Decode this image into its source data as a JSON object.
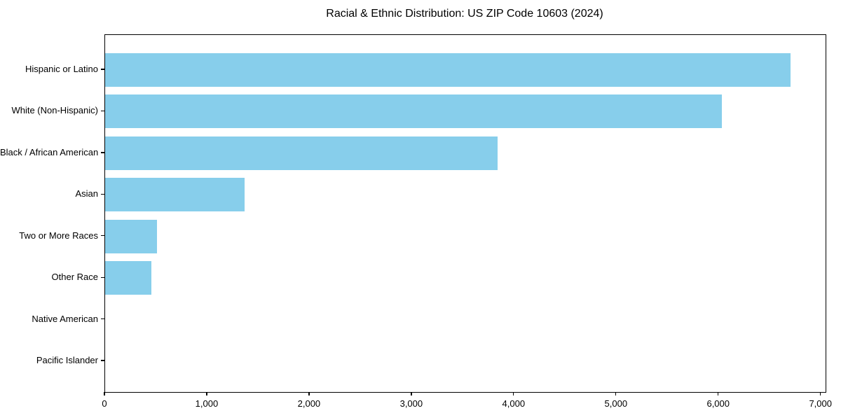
{
  "figure": {
    "kind": "static-chart-image"
  },
  "chart_data": {
    "type": "bar",
    "orientation": "horizontal",
    "title": "Racial & Ethnic Distribution: US ZIP Code 10603 (2024)",
    "categories": [
      "Hispanic or Latino",
      "White (Non-Hispanic)",
      "Black / African American",
      "Asian",
      "Two or More Races",
      "Other Race",
      "Native American",
      "Pacific Islander"
    ],
    "values": [
      6700,
      6030,
      3840,
      1360,
      510,
      450,
      0,
      0
    ],
    "xlabel": "",
    "ylabel": "",
    "xlim": [
      0,
      7043
    ],
    "x_ticks": [
      0,
      1000,
      2000,
      3000,
      4000,
      5000,
      6000,
      7000
    ],
    "x_tick_labels": [
      "0",
      "1,000",
      "2,000",
      "3,000",
      "4,000",
      "5,000",
      "6,000",
      "7,000"
    ],
    "bar_color": "#87CEEB",
    "spine_color": "#000000",
    "grid": false,
    "legend_position": "none"
  }
}
